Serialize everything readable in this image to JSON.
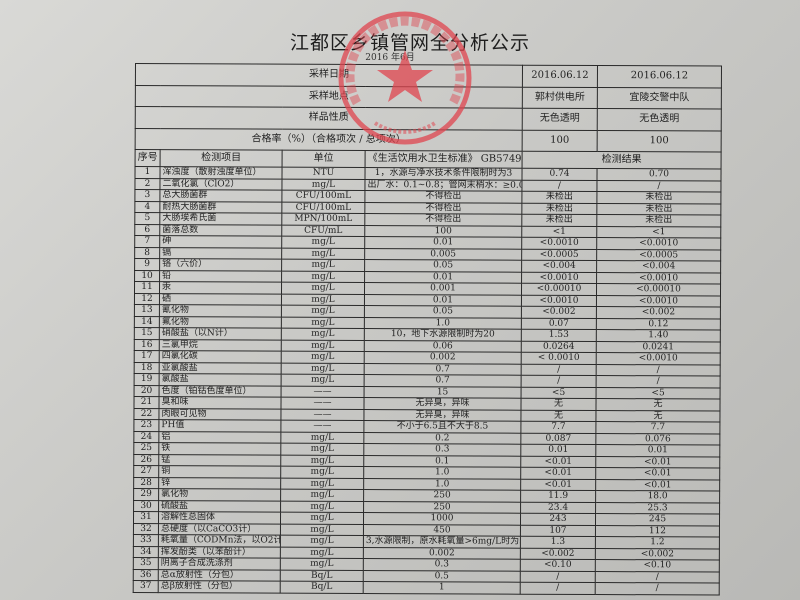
{
  "document": {
    "title": "江都区乡镇管网全分析公示",
    "subtitle": "2016 年6月"
  },
  "header_rows": [
    {
      "label": "采样日期",
      "values": [
        "2016.06.12",
        "2016.06.12"
      ]
    },
    {
      "label": "采样地点",
      "values": [
        "郭村供电所",
        "宜陵交警中队"
      ]
    },
    {
      "label": "样品性质",
      "values": [
        "无色透明",
        "无色透明"
      ]
    },
    {
      "label": "合格率（%）（合格项次 / 总项次）",
      "values": [
        "100",
        "100"
      ]
    }
  ],
  "columns": {
    "seq": "序号",
    "item": "检测项目",
    "unit": "单位",
    "standard": "《生活饮用水卫生标准》 GB5749",
    "results": "检测结果"
  },
  "rows": [
    [
      "1",
      "浑浊度（散射浊度单位）",
      "NTU",
      "1，水源与净水技术条件限制时为3",
      "0.74",
      "0.70"
    ],
    [
      "2",
      "二氧化氯（ClO2）",
      "mg/L",
      "出厂水：0.1~0.8；管网末梢水：≥0.02",
      "/",
      "/"
    ],
    [
      "3",
      "总大肠菌群",
      "CFU/100mL",
      "不得检出",
      "未检出",
      "未检出"
    ],
    [
      "4",
      "耐热大肠菌群",
      "CFU/100mL",
      "不得检出",
      "未检出",
      "未检出"
    ],
    [
      "5",
      "大肠埃希氏菌",
      "MPN/100mL",
      "不得检出",
      "未检出",
      "未检出"
    ],
    [
      "6",
      "菌落总数",
      "CFU/mL",
      "100",
      "<1",
      "<1"
    ],
    [
      "7",
      "砷",
      "mg/L",
      "0.01",
      "<0.0010",
      "<0.0010"
    ],
    [
      "8",
      "镉",
      "mg/L",
      "0.005",
      "<0.0005",
      "<0.0005"
    ],
    [
      "9",
      "铬（六价）",
      "mg/L",
      "0.05",
      "<0.004",
      "<0.004"
    ],
    [
      "10",
      "铅",
      "mg/L",
      "0.01",
      "<0.0010",
      "<0.0010"
    ],
    [
      "11",
      "汞",
      "mg/L",
      "0.001",
      "<0.00010",
      "<0.00010"
    ],
    [
      "12",
      "硒",
      "mg/L",
      "0.01",
      "<0.0010",
      "<0.0010"
    ],
    [
      "13",
      "氰化物",
      "mg/L",
      "0.05",
      "<0.002",
      "<0.002"
    ],
    [
      "14",
      "氟化物",
      "mg/L",
      "1.0",
      "0.07",
      "0.12"
    ],
    [
      "15",
      "硝酸盐（以N计）",
      "mg/L",
      "10，地下水源限制时为20",
      "1.53",
      "1.40"
    ],
    [
      "16",
      "三氯甲烷",
      "mg/L",
      "0.06",
      "0.0264",
      "0.0241"
    ],
    [
      "17",
      "四氯化碳",
      "mg/L",
      "0.002",
      "< 0.0010",
      "<0.0010"
    ],
    [
      "18",
      "亚氯酸盐",
      "mg/L",
      "0.7",
      "/",
      "/"
    ],
    [
      "19",
      "氯酸盐",
      "mg/L",
      "0.7",
      "/",
      "/"
    ],
    [
      "20",
      "色度（铂钴色度单位）",
      "——",
      "15",
      "<5",
      "<5"
    ],
    [
      "21",
      "臭和味",
      "——",
      "无异臭，异味",
      "无",
      "无"
    ],
    [
      "22",
      "肉眼可见物",
      "——",
      "无异臭，异味",
      "无",
      "无"
    ],
    [
      "23",
      "PH值",
      "——",
      "不小于6.5且不大于8.5",
      "7.7",
      "7.7"
    ],
    [
      "24",
      "铝",
      "mg/L",
      "0.2",
      "0.087",
      "0.076"
    ],
    [
      "25",
      "铁",
      "mg/L",
      "0.3",
      "0.01",
      "0.01"
    ],
    [
      "26",
      "锰",
      "mg/L",
      "0.1",
      "<0.01",
      "<0.01"
    ],
    [
      "27",
      "铜",
      "mg/L",
      "1.0",
      "<0.01",
      "<0.01"
    ],
    [
      "28",
      "锌",
      "mg/L",
      "1.0",
      "<0.01",
      "<0.01"
    ],
    [
      "29",
      "氯化物",
      "mg/L",
      "250",
      "11.9",
      "18.0"
    ],
    [
      "30",
      "硫酸盐",
      "mg/L",
      "250",
      "23.4",
      "25.3"
    ],
    [
      "31",
      "溶解性总固体",
      "mg/L",
      "1000",
      "243",
      "245"
    ],
    [
      "32",
      "总硬度（以CaCO3计）",
      "mg/L",
      "450",
      "107",
      "112"
    ],
    [
      "33",
      "耗氧量（CODMn法，以O2计）",
      "mg/L",
      "3,水源限制，原水耗氧量>6mg/L时为5",
      "1.3",
      "1.2"
    ],
    [
      "34",
      "挥发酚类（以苯酚计）",
      "mg/L",
      "0.002",
      "<0.002",
      "<0.002"
    ],
    [
      "35",
      "阴离子合成洗涤剂",
      "mg/L",
      "0.3",
      "<0.10",
      "<0.10"
    ],
    [
      "36",
      "总α放射性（分包）",
      "Bq/L",
      "0.5",
      "/",
      "/"
    ],
    [
      "37",
      "总β放射性（分包）",
      "Bq/L",
      "1",
      "/",
      "/"
    ]
  ],
  "colors": {
    "stamp": "#e0454f",
    "ink": "#222222",
    "paper": "#cfcfcc"
  }
}
